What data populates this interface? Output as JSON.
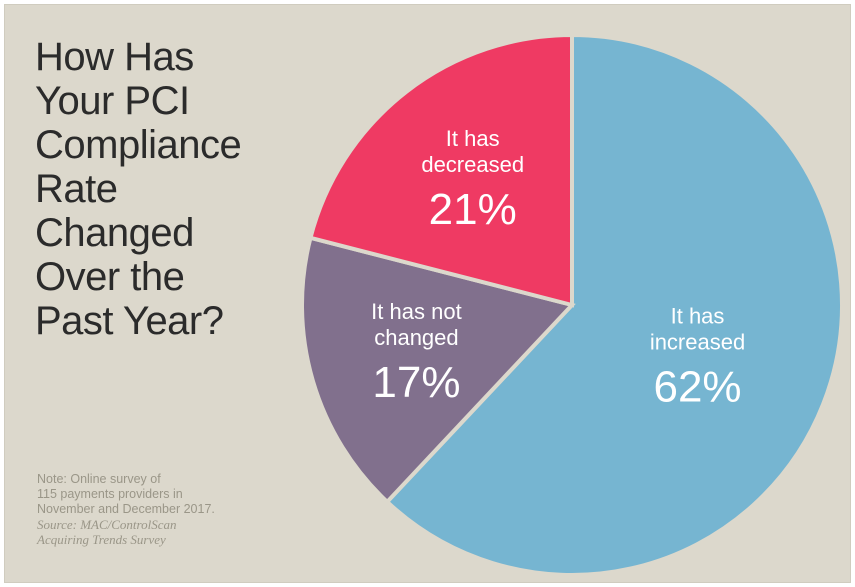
{
  "title": "How Has Your PCI Compliance Rate Changed Over the Past Year?",
  "title_lines": [
    "How Has",
    "Your PCI",
    "Compliance",
    "Rate",
    "Changed",
    "Over the",
    "Past Year?"
  ],
  "note": {
    "line1": "Note: Online survey of",
    "line2": "115 payments providers in",
    "line3": "November and December 2017.",
    "source1": "Source: MAC/ControlScan",
    "source2": "Acquiring Trends Survey"
  },
  "colors": {
    "background": "#dcd8cc",
    "increased": "#76b5d1",
    "decreased": "#ef3a63",
    "not_changed": "#81708d"
  },
  "chart_data": {
    "type": "pie",
    "slices": [
      {
        "label_lines": [
          "It has",
          "increased"
        ],
        "value": 62,
        "display": "62%",
        "color": "#76b5d1"
      },
      {
        "label_lines": [
          "It has not",
          "changed"
        ],
        "value": 17,
        "display": "17%",
        "color": "#81708d"
      },
      {
        "label_lines": [
          "It has",
          "decreased"
        ],
        "value": 21,
        "display": "21%",
        "color": "#ef3a63"
      }
    ],
    "start_angle_deg": 0,
    "direction": "clockwise"
  }
}
